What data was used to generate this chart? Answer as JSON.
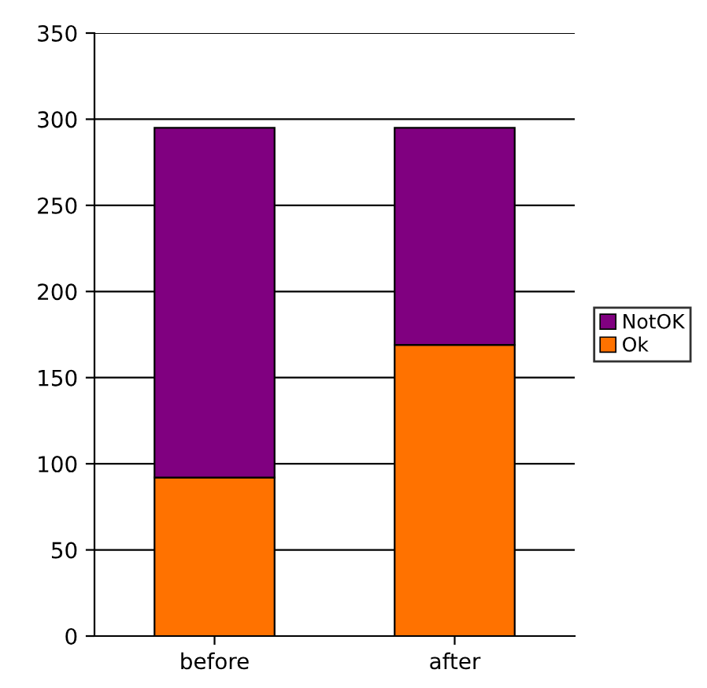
{
  "chart_data": {
    "type": "bar",
    "stacked": true,
    "categories": [
      "before",
      "after"
    ],
    "series": [
      {
        "name": "Ok",
        "color": "#ff7200",
        "values": [
          92,
          169
        ]
      },
      {
        "name": "NotOK",
        "color": "#800080",
        "values": [
          203,
          126
        ]
      }
    ],
    "ylim": [
      0,
      350
    ],
    "yticks": [
      0,
      50,
      100,
      150,
      200,
      250,
      300,
      350
    ],
    "grid": "y",
    "legend": "right"
  }
}
